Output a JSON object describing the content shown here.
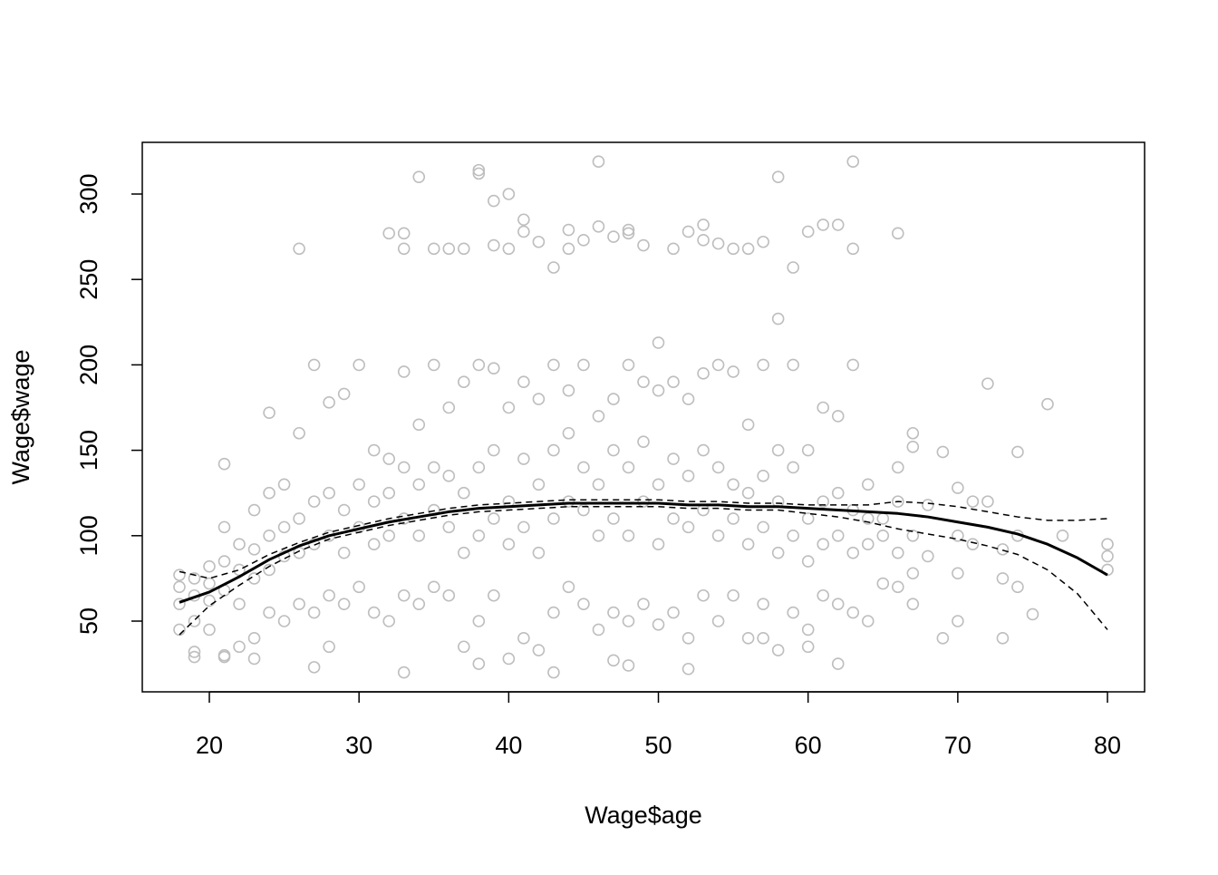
{
  "chart_data": {
    "type": "scatter",
    "x_label": "Wage$age",
    "y_label": "Wage$wage",
    "xlim": [
      15.52,
      82.48
    ],
    "ylim": [
      8.6,
      330.25
    ],
    "xticks": [
      20,
      30,
      40,
      50,
      60,
      70,
      80
    ],
    "yticks": [
      50,
      100,
      150,
      200,
      250,
      300
    ],
    "grid": false,
    "series": [
      {
        "mark": "circle",
        "color": "#bebebe",
        "x": [
          18,
          18,
          18,
          18,
          19,
          19,
          19,
          19,
          20,
          20,
          20,
          20,
          21,
          21,
          21,
          21,
          22,
          22,
          22,
          22,
          23,
          23,
          23,
          23,
          24,
          24,
          24,
          24,
          25,
          25,
          25,
          25,
          26,
          26,
          26,
          26,
          27,
          27,
          27,
          27,
          28,
          28,
          28,
          28,
          29,
          29,
          29,
          29,
          30,
          30,
          30,
          30,
          31,
          31,
          31,
          31,
          32,
          32,
          32,
          32,
          33,
          33,
          33,
          33,
          34,
          34,
          34,
          34,
          35,
          35,
          35,
          35,
          36,
          36,
          36,
          36,
          37,
          37,
          37,
          37,
          38,
          38,
          38,
          38,
          39,
          39,
          39,
          39,
          40,
          40,
          40,
          40,
          41,
          41,
          41,
          41,
          42,
          42,
          42,
          42,
          43,
          43,
          43,
          43,
          44,
          44,
          44,
          44,
          45,
          45,
          45,
          45,
          46,
          46,
          46,
          46,
          47,
          47,
          47,
          47,
          48,
          48,
          48,
          48,
          49,
          49,
          49,
          49,
          50,
          50,
          50,
          50,
          51,
          51,
          51,
          51,
          52,
          52,
          52,
          52,
          53,
          53,
          53,
          53,
          54,
          54,
          54,
          54,
          55,
          55,
          55,
          55,
          56,
          56,
          56,
          56,
          57,
          57,
          57,
          57,
          58,
          58,
          58,
          58,
          59,
          59,
          59,
          59,
          60,
          60,
          60,
          60,
          61,
          61,
          61,
          61,
          62,
          62,
          62,
          62,
          63,
          63,
          63,
          63,
          64,
          64,
          64,
          64,
          65,
          65,
          65,
          66,
          66,
          66,
          66,
          67,
          67,
          67,
          68,
          68,
          70,
          70,
          70,
          70,
          71,
          71,
          73,
          73,
          74,
          74,
          34,
          38,
          38,
          39,
          40,
          46,
          63,
          58,
          26,
          41,
          43,
          59,
          58,
          50,
          66,
          62,
          61,
          53,
          44,
          48,
          72,
          76,
          77,
          75,
          73,
          69,
          80,
          80,
          80,
          74,
          72,
          69,
          33,
          43,
          52,
          27,
          48,
          38,
          62,
          60,
          28,
          19,
          21,
          23,
          57,
          47,
          67,
          67,
          24,
          21,
          35,
          36,
          37,
          39,
          41,
          42,
          45,
          46,
          47,
          49,
          51,
          53,
          54,
          55,
          56,
          57,
          60,
          63,
          32,
          33,
          33,
          40,
          44,
          48,
          52
        ],
        "values": [
          45,
          60,
          70,
          77,
          32,
          50,
          65,
          75,
          45,
          62,
          72,
          82,
          30,
          68,
          85,
          105,
          35,
          60,
          80,
          95,
          40,
          75,
          92,
          115,
          55,
          80,
          100,
          125,
          50,
          88,
          105,
          130,
          60,
          90,
          110,
          160,
          55,
          95,
          120,
          200,
          65,
          100,
          125,
          178,
          60,
          90,
          115,
          183,
          70,
          105,
          130,
          200,
          55,
          95,
          120,
          150,
          50,
          100,
          125,
          145,
          65,
          110,
          140,
          196,
          60,
          100,
          130,
          165,
          70,
          115,
          140,
          200,
          65,
          105,
          135,
          175,
          35,
          90,
          125,
          190,
          50,
          100,
          140,
          200,
          65,
          110,
          150,
          198,
          28,
          95,
          120,
          175,
          40,
          105,
          145,
          190,
          33,
          90,
          130,
          180,
          55,
          110,
          150,
          200,
          70,
          120,
          160,
          185,
          60,
          115,
          140,
          200,
          45,
          100,
          130,
          170,
          55,
          110,
          150,
          180,
          50,
          100,
          140,
          200,
          60,
          120,
          155,
          190,
          48,
          95,
          130,
          185,
          55,
          110,
          145,
          190,
          40,
          105,
          135,
          180,
          65,
          115,
          150,
          195,
          50,
          100,
          140,
          200,
          65,
          110,
          130,
          196,
          40,
          95,
          125,
          165,
          60,
          105,
          135,
          200,
          33,
          90,
          120,
          150,
          55,
          100,
          140,
          200,
          45,
          85,
          110,
          150,
          65,
          95,
          120,
          175,
          60,
          100,
          125,
          170,
          55,
          90,
          115,
          200,
          50,
          95,
          110,
          130,
          72,
          100,
          110,
          70,
          90,
          120,
          140,
          60,
          78,
          100,
          88,
          118,
          50,
          78,
          100,
          128,
          95,
          120,
          75,
          92,
          70,
          100,
          310,
          314,
          312,
          296,
          300,
          319,
          319,
          310,
          268,
          285,
          257,
          257,
          227,
          213,
          277,
          282,
          282,
          282,
          279,
          279,
          189,
          177,
          100,
          54,
          40,
          40,
          95,
          88,
          80,
          149,
          120,
          149,
          20,
          20,
          22,
          23,
          24,
          25,
          25,
          35,
          35,
          29,
          29,
          28,
          40,
          27,
          160,
          152,
          172,
          142,
          268,
          268,
          268,
          270,
          278,
          272,
          273,
          281,
          275,
          270,
          268,
          273,
          271,
          268,
          268,
          272,
          278,
          268,
          277,
          277,
          268,
          268,
          268,
          277,
          278
        ]
      },
      {
        "mark": "line",
        "line_style": "solid",
        "line_width": 3,
        "color": "#000000",
        "x": [
          18,
          20,
          22,
          24,
          26,
          28,
          30,
          32,
          34,
          36,
          38,
          40,
          42,
          44,
          46,
          48,
          50,
          52,
          54,
          56,
          58,
          60,
          62,
          64,
          66,
          68,
          70,
          72,
          74,
          76,
          78,
          80
        ],
        "values": [
          61,
          67,
          76,
          86,
          94,
          100,
          104,
          108,
          111,
          114,
          116,
          117,
          118,
          119,
          119,
          119,
          119,
          118,
          118,
          117,
          117,
          116,
          115,
          114,
          113,
          111,
          108,
          105,
          101,
          95,
          87,
          77
        ]
      },
      {
        "mark": "line",
        "line_style": "dashed",
        "line_width": 1.5,
        "color": "#000000",
        "x": [
          18,
          20,
          22,
          24,
          26,
          28,
          30,
          32,
          34,
          36,
          38,
          40,
          42,
          44,
          46,
          48,
          50,
          52,
          54,
          56,
          58,
          60,
          62,
          64,
          66,
          68,
          70,
          72,
          74,
          76,
          78,
          80
        ],
        "values": [
          79,
          75,
          80,
          89,
          96,
          102,
          106,
          110,
          113,
          116,
          118,
          119,
          120,
          121,
          121,
          121,
          121,
          120,
          120,
          119,
          119,
          118,
          118,
          118,
          120,
          119,
          117,
          114,
          111,
          109,
          109,
          110
        ]
      },
      {
        "mark": "line",
        "line_style": "dashed",
        "line_width": 1.5,
        "color": "#000000",
        "x": [
          18,
          20,
          22,
          24,
          26,
          28,
          30,
          32,
          34,
          36,
          38,
          40,
          42,
          44,
          46,
          48,
          50,
          52,
          54,
          56,
          58,
          60,
          62,
          64,
          66,
          68,
          70,
          72,
          74,
          76,
          78,
          80
        ],
        "values": [
          42,
          59,
          71,
          82,
          91,
          98,
          102,
          106,
          109,
          112,
          114,
          115,
          116,
          117,
          117,
          117,
          117,
          116,
          116,
          115,
          115,
          113,
          111,
          108,
          104,
          101,
          98,
          94,
          89,
          80,
          66,
          45
        ]
      }
    ]
  }
}
